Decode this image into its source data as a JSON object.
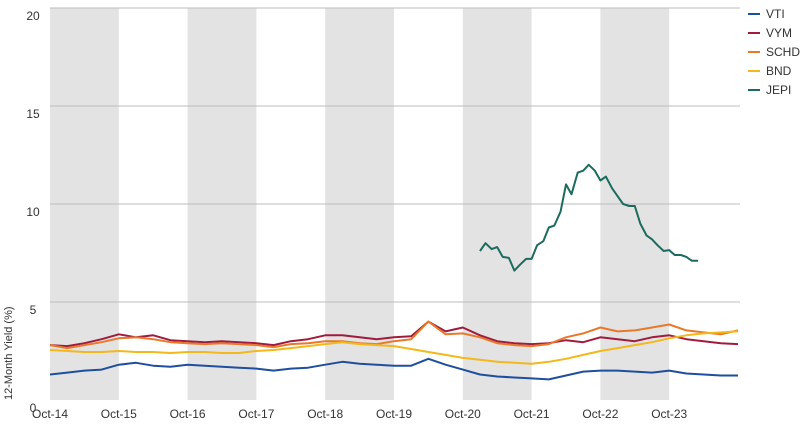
{
  "chart_data": {
    "type": "line",
    "title": "",
    "xlabel": "",
    "ylabel": "12-Month Yield (%)",
    "ylim": [
      0,
      20
    ],
    "y_ticks": [
      0,
      5,
      10,
      15,
      20
    ],
    "y_tick_labels": [
      "0",
      "5",
      "10",
      "15",
      "20"
    ],
    "x_range": [
      2014.75,
      2024.75
    ],
    "x_ticks": [
      2014.75,
      2015.75,
      2016.75,
      2017.75,
      2018.75,
      2019.75,
      2020.75,
      2021.75,
      2022.75,
      2023.75
    ],
    "x_tick_labels": [
      "Oct-14",
      "Oct-15",
      "Oct-16",
      "Oct-17",
      "Oct-18",
      "Oct-19",
      "Oct-20",
      "Oct-21",
      "Oct-22",
      "Oct-23"
    ],
    "shaded_bands": [
      [
        2014.75,
        2015.75
      ],
      [
        2016.75,
        2017.75
      ],
      [
        2018.75,
        2019.75
      ],
      [
        2020.75,
        2021.75
      ],
      [
        2022.75,
        2023.75
      ]
    ],
    "grid": "horizontal",
    "legend": "top-right",
    "series": [
      {
        "name": "VTI",
        "color": "#1f4e9e",
        "points": [
          [
            2014.75,
            1.3
          ],
          [
            2015.0,
            1.4
          ],
          [
            2015.25,
            1.5
          ],
          [
            2015.5,
            1.55
          ],
          [
            2015.75,
            1.8
          ],
          [
            2016.0,
            1.9
          ],
          [
            2016.25,
            1.75
          ],
          [
            2016.5,
            1.7
          ],
          [
            2016.75,
            1.8
          ],
          [
            2017.0,
            1.75
          ],
          [
            2017.25,
            1.7
          ],
          [
            2017.5,
            1.65
          ],
          [
            2017.75,
            1.6
          ],
          [
            2018.0,
            1.5
          ],
          [
            2018.25,
            1.6
          ],
          [
            2018.5,
            1.65
          ],
          [
            2018.75,
            1.8
          ],
          [
            2019.0,
            1.95
          ],
          [
            2019.25,
            1.85
          ],
          [
            2019.5,
            1.8
          ],
          [
            2019.75,
            1.75
          ],
          [
            2020.0,
            1.75
          ],
          [
            2020.25,
            2.1
          ],
          [
            2020.5,
            1.8
          ],
          [
            2020.75,
            1.55
          ],
          [
            2021.0,
            1.3
          ],
          [
            2021.25,
            1.2
          ],
          [
            2021.5,
            1.15
          ],
          [
            2021.75,
            1.1
          ],
          [
            2022.0,
            1.05
          ],
          [
            2022.25,
            1.25
          ],
          [
            2022.5,
            1.45
          ],
          [
            2022.75,
            1.5
          ],
          [
            2023.0,
            1.5
          ],
          [
            2023.25,
            1.45
          ],
          [
            2023.5,
            1.4
          ],
          [
            2023.75,
            1.5
          ],
          [
            2024.0,
            1.35
          ],
          [
            2024.25,
            1.3
          ],
          [
            2024.5,
            1.25
          ],
          [
            2024.75,
            1.25
          ]
        ]
      },
      {
        "name": "VYM",
        "color": "#a01c3c",
        "points": [
          [
            2014.75,
            2.8
          ],
          [
            2015.0,
            2.75
          ],
          [
            2015.25,
            2.9
          ],
          [
            2015.5,
            3.1
          ],
          [
            2015.75,
            3.35
          ],
          [
            2016.0,
            3.2
          ],
          [
            2016.25,
            3.3
          ],
          [
            2016.5,
            3.05
          ],
          [
            2016.75,
            3.0
          ],
          [
            2017.0,
            2.95
          ],
          [
            2017.25,
            3.0
          ],
          [
            2017.5,
            2.95
          ],
          [
            2017.75,
            2.9
          ],
          [
            2018.0,
            2.8
          ],
          [
            2018.25,
            3.0
          ],
          [
            2018.5,
            3.1
          ],
          [
            2018.75,
            3.3
          ],
          [
            2019.0,
            3.3
          ],
          [
            2019.25,
            3.2
          ],
          [
            2019.5,
            3.1
          ],
          [
            2019.75,
            3.2
          ],
          [
            2020.0,
            3.25
          ],
          [
            2020.25,
            4.0
          ],
          [
            2020.5,
            3.5
          ],
          [
            2020.75,
            3.7
          ],
          [
            2021.0,
            3.3
          ],
          [
            2021.25,
            3.0
          ],
          [
            2021.5,
            2.9
          ],
          [
            2021.75,
            2.85
          ],
          [
            2022.0,
            2.9
          ],
          [
            2022.25,
            3.05
          ],
          [
            2022.5,
            2.95
          ],
          [
            2022.75,
            3.2
          ],
          [
            2023.0,
            3.1
          ],
          [
            2023.25,
            3.0
          ],
          [
            2023.5,
            3.2
          ],
          [
            2023.75,
            3.3
          ],
          [
            2024.0,
            3.1
          ],
          [
            2024.25,
            3.0
          ],
          [
            2024.5,
            2.9
          ],
          [
            2024.75,
            2.85
          ]
        ]
      },
      {
        "name": "SCHD",
        "color": "#e8792b",
        "points": [
          [
            2014.75,
            2.8
          ],
          [
            2015.0,
            2.65
          ],
          [
            2015.25,
            2.8
          ],
          [
            2015.5,
            2.95
          ],
          [
            2015.75,
            3.15
          ],
          [
            2016.0,
            3.2
          ],
          [
            2016.25,
            3.1
          ],
          [
            2016.5,
            2.95
          ],
          [
            2016.75,
            2.9
          ],
          [
            2017.0,
            2.85
          ],
          [
            2017.25,
            2.9
          ],
          [
            2017.5,
            2.85
          ],
          [
            2017.75,
            2.8
          ],
          [
            2018.0,
            2.7
          ],
          [
            2018.25,
            2.85
          ],
          [
            2018.5,
            2.9
          ],
          [
            2018.75,
            3.0
          ],
          [
            2019.0,
            3.0
          ],
          [
            2019.25,
            2.9
          ],
          [
            2019.5,
            2.85
          ],
          [
            2019.75,
            3.0
          ],
          [
            2020.0,
            3.1
          ],
          [
            2020.25,
            4.0
          ],
          [
            2020.5,
            3.35
          ],
          [
            2020.75,
            3.4
          ],
          [
            2021.0,
            3.2
          ],
          [
            2021.25,
            2.9
          ],
          [
            2021.5,
            2.8
          ],
          [
            2021.75,
            2.75
          ],
          [
            2022.0,
            2.85
          ],
          [
            2022.25,
            3.2
          ],
          [
            2022.5,
            3.4
          ],
          [
            2022.75,
            3.7
          ],
          [
            2023.0,
            3.5
          ],
          [
            2023.25,
            3.55
          ],
          [
            2023.5,
            3.7
          ],
          [
            2023.75,
            3.85
          ],
          [
            2024.0,
            3.55
          ],
          [
            2024.25,
            3.45
          ],
          [
            2024.5,
            3.35
          ],
          [
            2024.75,
            3.55
          ]
        ]
      },
      {
        "name": "BND",
        "color": "#f2b81c",
        "points": [
          [
            2014.75,
            2.55
          ],
          [
            2015.0,
            2.5
          ],
          [
            2015.25,
            2.45
          ],
          [
            2015.5,
            2.45
          ],
          [
            2015.75,
            2.5
          ],
          [
            2016.0,
            2.45
          ],
          [
            2016.25,
            2.45
          ],
          [
            2016.5,
            2.4
          ],
          [
            2016.75,
            2.45
          ],
          [
            2017.0,
            2.45
          ],
          [
            2017.25,
            2.4
          ],
          [
            2017.5,
            2.4
          ],
          [
            2017.75,
            2.5
          ],
          [
            2018.0,
            2.55
          ],
          [
            2018.25,
            2.65
          ],
          [
            2018.5,
            2.75
          ],
          [
            2018.75,
            2.85
          ],
          [
            2019.0,
            2.95
          ],
          [
            2019.25,
            2.85
          ],
          [
            2019.5,
            2.8
          ],
          [
            2019.75,
            2.75
          ],
          [
            2020.0,
            2.6
          ],
          [
            2020.25,
            2.45
          ],
          [
            2020.5,
            2.3
          ],
          [
            2020.75,
            2.15
          ],
          [
            2021.0,
            2.05
          ],
          [
            2021.25,
            1.95
          ],
          [
            2021.5,
            1.9
          ],
          [
            2021.75,
            1.85
          ],
          [
            2022.0,
            1.95
          ],
          [
            2022.25,
            2.1
          ],
          [
            2022.5,
            2.3
          ],
          [
            2022.75,
            2.5
          ],
          [
            2023.0,
            2.65
          ],
          [
            2023.25,
            2.8
          ],
          [
            2023.5,
            2.95
          ],
          [
            2023.75,
            3.15
          ],
          [
            2024.0,
            3.3
          ],
          [
            2024.25,
            3.4
          ],
          [
            2024.5,
            3.45
          ],
          [
            2024.75,
            3.5
          ]
        ]
      },
      {
        "name": "JEPI",
        "color": "#1b6b5e",
        "points": [
          [
            2021.0,
            7.6
          ],
          [
            2021.08,
            8.0
          ],
          [
            2021.17,
            7.7
          ],
          [
            2021.25,
            7.8
          ],
          [
            2021.33,
            7.3
          ],
          [
            2021.42,
            7.25
          ],
          [
            2021.5,
            6.6
          ],
          [
            2021.58,
            6.9
          ],
          [
            2021.67,
            7.2
          ],
          [
            2021.75,
            7.2
          ],
          [
            2021.83,
            7.9
          ],
          [
            2021.92,
            8.1
          ],
          [
            2022.0,
            8.8
          ],
          [
            2022.08,
            8.9
          ],
          [
            2022.17,
            9.6
          ],
          [
            2022.25,
            11.0
          ],
          [
            2022.33,
            10.5
          ],
          [
            2022.42,
            11.6
          ],
          [
            2022.5,
            11.7
          ],
          [
            2022.58,
            12.0
          ],
          [
            2022.67,
            11.7
          ],
          [
            2022.75,
            11.2
          ],
          [
            2022.83,
            11.4
          ],
          [
            2022.92,
            10.8
          ],
          [
            2023.0,
            10.4
          ],
          [
            2023.08,
            10.0
          ],
          [
            2023.17,
            9.9
          ],
          [
            2023.25,
            9.9
          ],
          [
            2023.33,
            9.0
          ],
          [
            2023.42,
            8.4
          ],
          [
            2023.5,
            8.2
          ],
          [
            2023.58,
            7.9
          ],
          [
            2023.67,
            7.6
          ],
          [
            2023.75,
            7.65
          ],
          [
            2023.83,
            7.4
          ],
          [
            2023.92,
            7.4
          ],
          [
            2024.0,
            7.3
          ],
          [
            2024.08,
            7.1
          ],
          [
            2024.17,
            7.1
          ]
        ]
      }
    ]
  }
}
